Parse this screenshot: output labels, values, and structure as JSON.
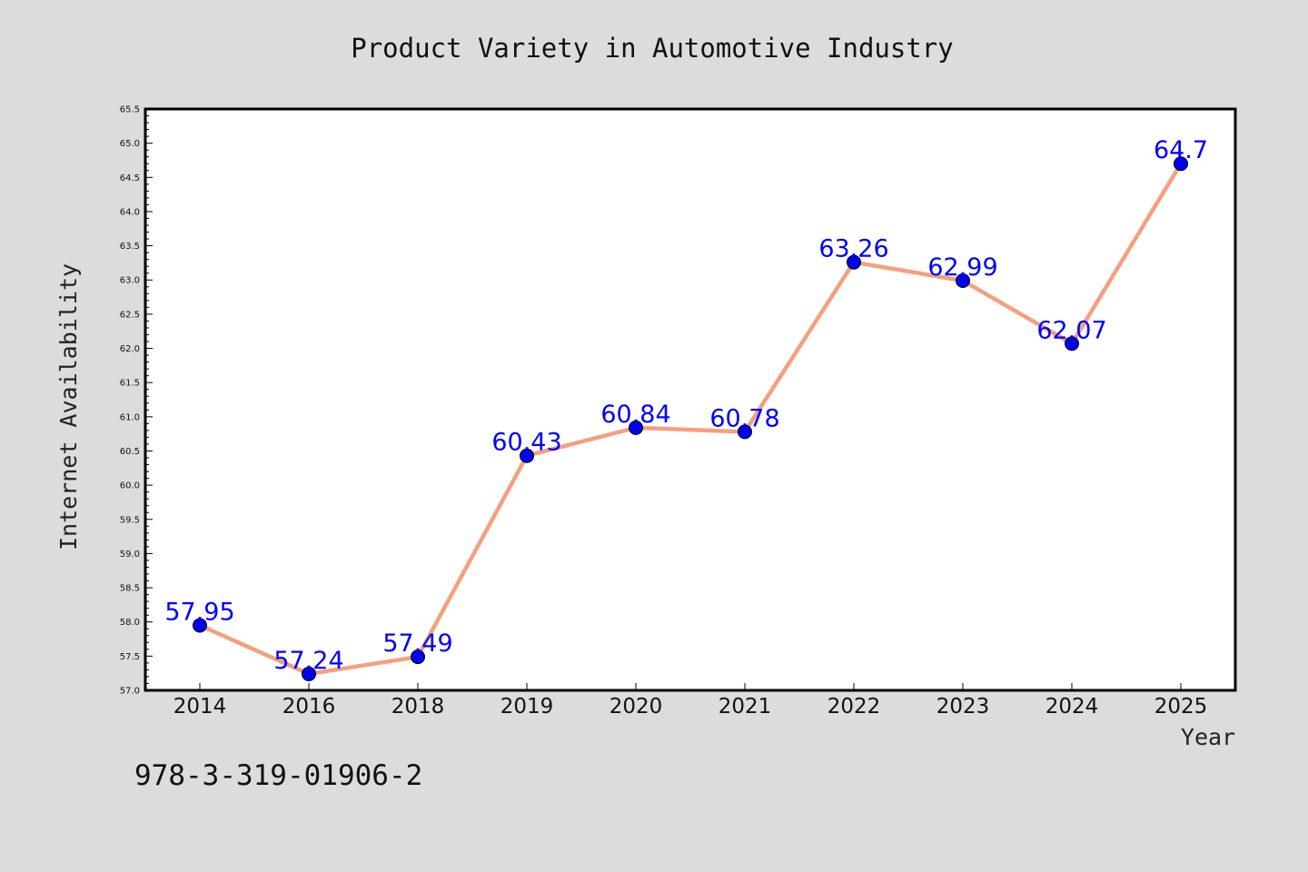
{
  "chart_data": {
    "type": "line",
    "title": "Product Variety in Automotive Industry",
    "xlabel": "Year",
    "ylabel": "Internet Availability",
    "categories": [
      "2014",
      "2016",
      "2018",
      "2019",
      "2020",
      "2021",
      "2022",
      "2023",
      "2024",
      "2025"
    ],
    "series": [
      {
        "values": [
          57.95,
          57.24,
          57.49,
          60.43,
          60.84,
          60.78,
          63.26,
          62.99,
          62.07,
          64.7
        ],
        "data_labels": [
          "57.95",
          "57.24",
          "57.49",
          "60.43",
          "60.84",
          "60.78",
          "63.26",
          "62.99",
          "62.07",
          "64.7"
        ],
        "line_color": "#f4a07e",
        "marker_color": "#0000ee"
      }
    ],
    "ylim": [
      57.0,
      65.5
    ],
    "yticks": [
      "57.0",
      "57.5",
      "58.0",
      "58.5",
      "59.0",
      "59.5",
      "60.0",
      "60.5",
      "61.0",
      "61.5",
      "62.0",
      "62.5",
      "63.0",
      "63.5",
      "64.0",
      "64.5",
      "65.0",
      "65.5"
    ],
    "grid": false,
    "legend": "none",
    "annotation": "978-3-319-01906-2"
  },
  "colors": {
    "background": "#dcdcdc",
    "plot_area": "#ffffff",
    "data_label": "#0000ff"
  }
}
